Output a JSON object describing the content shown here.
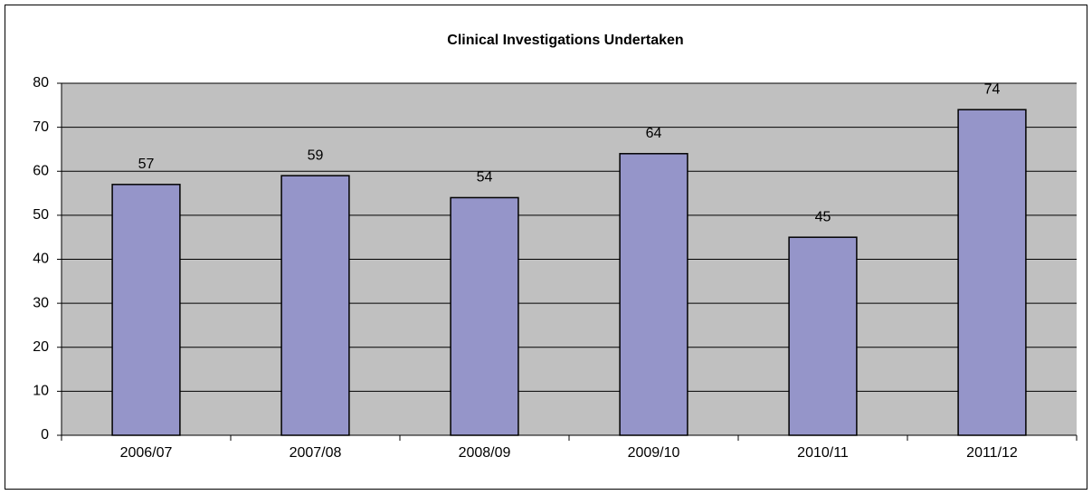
{
  "chart_data": {
    "type": "bar",
    "title": "Clinical Investigations Undertaken",
    "categories": [
      "2006/07",
      "2007/08",
      "2008/09",
      "2009/10",
      "2010/11",
      "2011/12"
    ],
    "values": [
      57,
      59,
      54,
      64,
      45,
      74
    ],
    "color": "#9595c9",
    "data_labels": true,
    "ylim": [
      0,
      80
    ],
    "yticks": [
      0,
      10,
      20,
      30,
      40,
      50,
      60,
      70,
      80
    ],
    "grid": true
  }
}
